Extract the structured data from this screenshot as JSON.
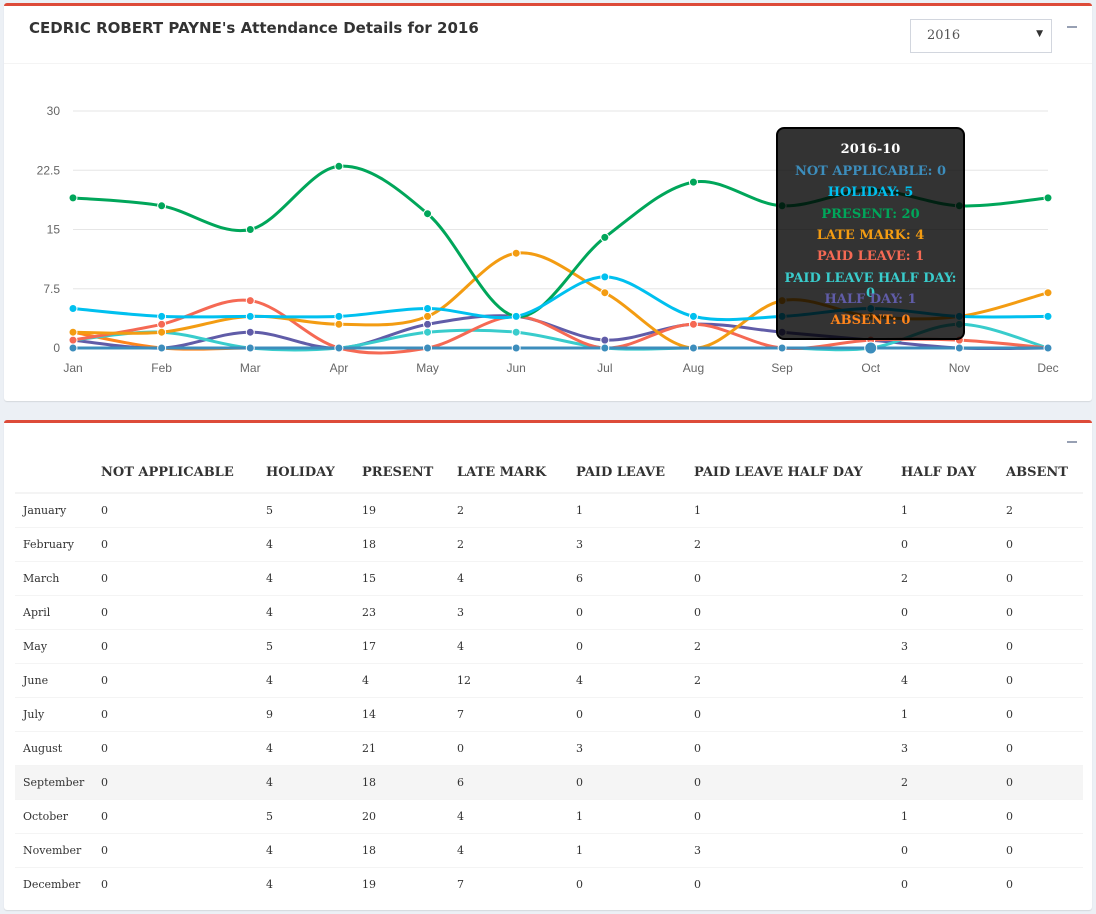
{
  "chart_box": {
    "title": "CEDRIC ROBERT PAYNE's Attendance Details for 2016",
    "year_select": {
      "value": "2016",
      "options": [
        "2016"
      ]
    }
  },
  "chart_data": {
    "type": "line",
    "categories": [
      "Jan",
      "Feb",
      "Mar",
      "Apr",
      "May",
      "Jun",
      "Jul",
      "Aug",
      "Sep",
      "Oct",
      "Nov",
      "Dec"
    ],
    "ylim": [
      0,
      30
    ],
    "yticks": [
      "0",
      "7.5",
      "15",
      "22.5",
      "30"
    ],
    "grid": true,
    "series": [
      {
        "name": "NOT APPLICABLE",
        "color": "#3c8dbc",
        "values": [
          0,
          0,
          0,
          0,
          0,
          0,
          0,
          0,
          0,
          0,
          0,
          0
        ]
      },
      {
        "name": "HOLIDAY",
        "color": "#00c0ef",
        "values": [
          5,
          4,
          4,
          4,
          5,
          4,
          9,
          4,
          4,
          5,
          4,
          4
        ]
      },
      {
        "name": "PRESENT",
        "color": "#00a65a",
        "values": [
          19,
          18,
          15,
          23,
          17,
          4,
          14,
          21,
          18,
          20,
          18,
          19
        ]
      },
      {
        "name": "LATE MARK",
        "color": "#f39c12",
        "values": [
          2,
          2,
          4,
          3,
          4,
          12,
          7,
          0,
          6,
          4,
          4,
          7
        ]
      },
      {
        "name": "PAID LEAVE",
        "color": "#f56954",
        "values": [
          1,
          3,
          6,
          0,
          0,
          4,
          0,
          3,
          0,
          1,
          1,
          0
        ]
      },
      {
        "name": "PAID LEAVE HALF DAY",
        "color": "#39cccc",
        "values": [
          1,
          2,
          0,
          0,
          2,
          2,
          0,
          0,
          0,
          0,
          3,
          0
        ]
      },
      {
        "name": "HALF DAY",
        "color": "#605ca8",
        "values": [
          1,
          0,
          2,
          0,
          3,
          4,
          1,
          3,
          2,
          1,
          0,
          0
        ]
      },
      {
        "name": "ABSENT",
        "color": "#ff851b",
        "values": [
          2,
          0,
          0,
          0,
          0,
          0,
          0,
          0,
          0,
          0,
          0,
          0
        ]
      }
    ]
  },
  "tooltip": {
    "title": "2016-10",
    "rows": [
      {
        "text": "NOT APPLICABLE: 0",
        "color": "#3c8dbc"
      },
      {
        "text": "HOLIDAY: 5",
        "color": "#00c0ef"
      },
      {
        "text": "PRESENT: 20",
        "color": "#00a65a"
      },
      {
        "text": "LATE MARK: 4",
        "color": "#f39c12"
      },
      {
        "text": "PAID LEAVE: 1",
        "color": "#f56954"
      },
      {
        "text": "PAID LEAVE HALF DAY: 0",
        "color": "#39cccc"
      },
      {
        "text": "HALF DAY: 1",
        "color": "#605ca8"
      },
      {
        "text": "ABSENT: 0",
        "color": "#ff851b"
      }
    ]
  },
  "table": {
    "headers": [
      "",
      "NOT APPLICABLE",
      "HOLIDAY",
      "PRESENT",
      "LATE MARK",
      "PAID LEAVE",
      "PAID LEAVE HALF DAY",
      "HALF DAY",
      "ABSENT"
    ],
    "rows": [
      [
        "January",
        "0",
        "5",
        "19",
        "2",
        "1",
        "1",
        "1",
        "2"
      ],
      [
        "February",
        "0",
        "4",
        "18",
        "2",
        "3",
        "2",
        "0",
        "0"
      ],
      [
        "March",
        "0",
        "4",
        "15",
        "4",
        "6",
        "0",
        "2",
        "0"
      ],
      [
        "April",
        "0",
        "4",
        "23",
        "3",
        "0",
        "0",
        "0",
        "0"
      ],
      [
        "May",
        "0",
        "5",
        "17",
        "4",
        "0",
        "2",
        "3",
        "0"
      ],
      [
        "June",
        "0",
        "4",
        "4",
        "12",
        "4",
        "2",
        "4",
        "0"
      ],
      [
        "July",
        "0",
        "9",
        "14",
        "7",
        "0",
        "0",
        "1",
        "0"
      ],
      [
        "August",
        "0",
        "4",
        "21",
        "0",
        "3",
        "0",
        "3",
        "0"
      ],
      [
        "September",
        "0",
        "4",
        "18",
        "6",
        "0",
        "0",
        "2",
        "0"
      ],
      [
        "October",
        "0",
        "5",
        "20",
        "4",
        "1",
        "0",
        "1",
        "0"
      ],
      [
        "November",
        "0",
        "4",
        "18",
        "4",
        "1",
        "3",
        "0",
        "0"
      ],
      [
        "December",
        "0",
        "4",
        "19",
        "7",
        "0",
        "0",
        "0",
        "0"
      ]
    ],
    "highlighted_row": 8
  }
}
